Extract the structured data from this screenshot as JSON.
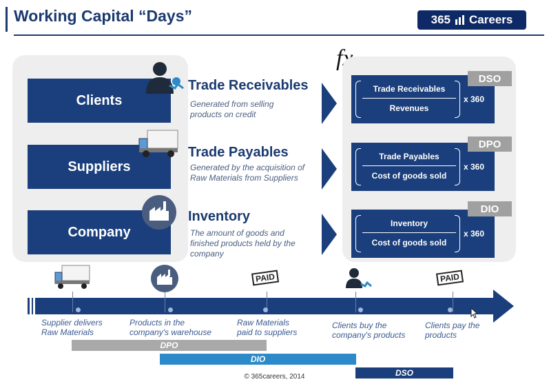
{
  "header": {
    "title": "Working Capital “Days”",
    "logo_number": "365",
    "logo_text": "Careers"
  },
  "entities": [
    {
      "label": "Clients"
    },
    {
      "label": "Suppliers"
    },
    {
      "label": "Company"
    }
  ],
  "items": [
    {
      "title": "Trade Receivables",
      "desc_line1": "Generated from selling",
      "desc_line2": "products on credit",
      "desc_line3": ""
    },
    {
      "title": "Trade Payables",
      "desc_line1": "Generated by the acquisition of",
      "desc_line2": "Raw Materials from Suppliers",
      "desc_line3": ""
    },
    {
      "title": "Inventory",
      "desc_line1": "The amount of goods and",
      "desc_line2": "finished products held by the",
      "desc_line3": "company"
    }
  ],
  "fx_symbol": "fx",
  "formulas": [
    {
      "tag": "DSO",
      "numerator": "Trade Receivables",
      "denominator": "Revenues",
      "multiplier": "x 360"
    },
    {
      "tag": "DPO",
      "numerator": "Trade Payables",
      "denominator": "Cost of goods sold",
      "multiplier": "x 360"
    },
    {
      "tag": "DIO",
      "numerator": "Inventory",
      "denominator": "Cost of goods sold",
      "multiplier": "x 360"
    }
  ],
  "timeline": {
    "events": [
      {
        "line1": "Supplier delivers",
        "line2": "Raw Materials",
        "icon": "truck-icon"
      },
      {
        "line1": "Products in the",
        "line2": "company's warehouse",
        "icon": "factory-icon"
      },
      {
        "line1": "Raw Materials",
        "line2": "paid to suppliers",
        "icon": "paid-stamp-icon"
      },
      {
        "line1": "Clients buy the",
        "line2": "company's products",
        "icon": "client-icon"
      },
      {
        "line1": "Clients pay the",
        "line2": "products",
        "icon": "paid-stamp-icon"
      }
    ],
    "paid_label": "PAID",
    "spans": [
      {
        "label": "DPO",
        "color": "#a9a9a9"
      },
      {
        "label": "DIO",
        "color": "#2c8ac8"
      },
      {
        "label": "DSO",
        "color": "#1a3f7c"
      }
    ]
  },
  "footer": "© 365careers, 2014",
  "colors": {
    "navy": "#1a3f7c",
    "grey": "#a0a0a0",
    "panel": "#eeeeee",
    "accent_blue": "#2c8ac8"
  }
}
